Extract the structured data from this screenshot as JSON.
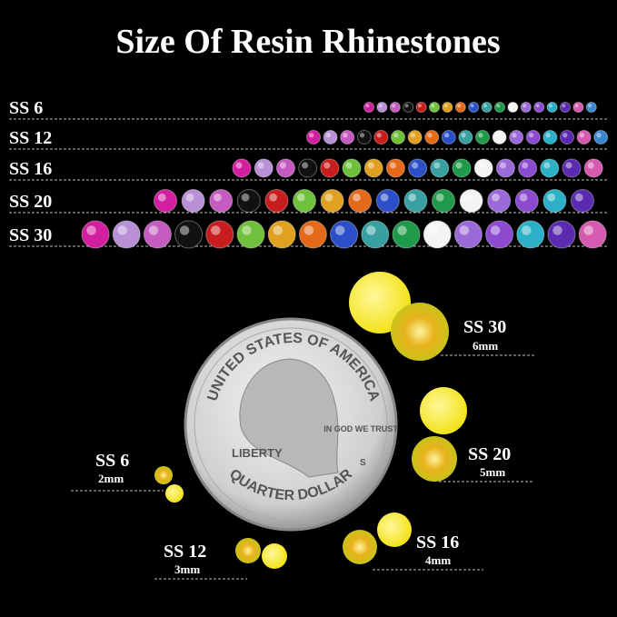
{
  "header": {
    "title": "Size Of Resin Rhinestones"
  },
  "rows": [
    {
      "label": "SS 6"
    },
    {
      "label": "SS 12"
    },
    {
      "label": "SS 16"
    },
    {
      "label": "SS 20"
    },
    {
      "label": "SS 30"
    }
  ],
  "coin": {
    "top": "UNITED STATES OF AMERICA",
    "left": "LIBERTY",
    "motto": "IN GOD WE TRUST",
    "mint": "S",
    "bottom": "QUARTER DOLLAR"
  },
  "callouts": [
    {
      "size": "SS 30",
      "mm": "6mm"
    },
    {
      "size": "SS 20",
      "mm": "5mm"
    },
    {
      "size": "SS 6",
      "mm": "2mm"
    },
    {
      "size": "SS 12",
      "mm": "3mm"
    },
    {
      "size": "SS 16",
      "mm": "4mm"
    }
  ]
}
